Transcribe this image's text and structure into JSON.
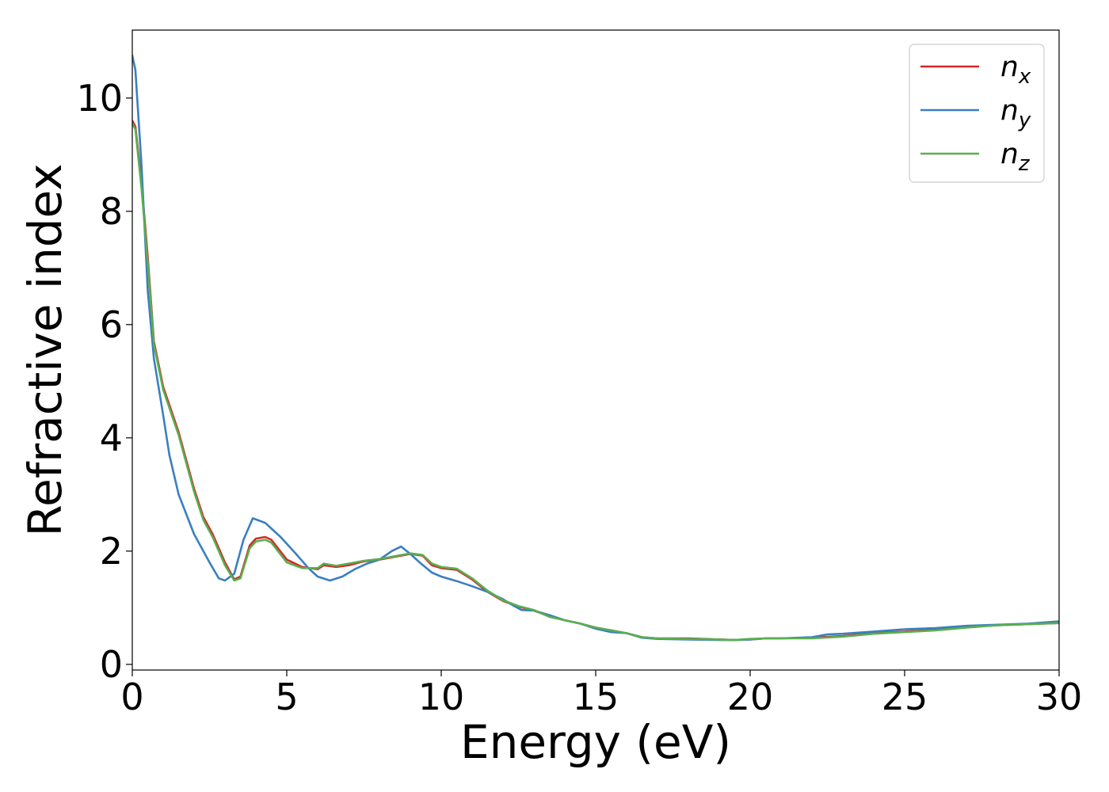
{
  "chart_data": {
    "type": "line",
    "title": "",
    "xlabel": "Energy (eV)",
    "ylabel": "Refractive index",
    "xlim": [
      0,
      30
    ],
    "ylim": [
      -0.1,
      11.2
    ],
    "xticks": [
      0,
      5,
      10,
      15,
      20,
      25,
      30
    ],
    "yticks": [
      0,
      2,
      4,
      6,
      8,
      10
    ],
    "grid": false,
    "legend_position": "top-right",
    "series": [
      {
        "name": "n_x",
        "label_base": "n",
        "label_sub": "x",
        "color": "#d62728",
        "points": [
          [
            0,
            9.6
          ],
          [
            0.1,
            9.5
          ],
          [
            0.3,
            8.5
          ],
          [
            0.5,
            7.2
          ],
          [
            0.7,
            5.7
          ],
          [
            1,
            4.9
          ],
          [
            1.5,
            4.1
          ],
          [
            2,
            3.1
          ],
          [
            2.3,
            2.6
          ],
          [
            2.6,
            2.3
          ],
          [
            3,
            1.8
          ],
          [
            3.3,
            1.5
          ],
          [
            3.5,
            1.55
          ],
          [
            3.8,
            2.1
          ],
          [
            4.0,
            2.22
          ],
          [
            4.3,
            2.25
          ],
          [
            4.5,
            2.2
          ],
          [
            5,
            1.85
          ],
          [
            5.5,
            1.72
          ],
          [
            6,
            1.68
          ],
          [
            6.2,
            1.75
          ],
          [
            6.6,
            1.72
          ],
          [
            7,
            1.75
          ],
          [
            7.5,
            1.82
          ],
          [
            8,
            1.85
          ],
          [
            8.5,
            1.9
          ],
          [
            9,
            1.95
          ],
          [
            9.4,
            1.92
          ],
          [
            9.7,
            1.75
          ],
          [
            10,
            1.7
          ],
          [
            10.5,
            1.67
          ],
          [
            11,
            1.5
          ],
          [
            11.5,
            1.28
          ],
          [
            12,
            1.12
          ],
          [
            12.5,
            1.02
          ],
          [
            13,
            0.95
          ],
          [
            13.5,
            0.85
          ],
          [
            14,
            0.78
          ],
          [
            14.5,
            0.72
          ],
          [
            15,
            0.65
          ],
          [
            15.5,
            0.6
          ],
          [
            16,
            0.55
          ],
          [
            16.5,
            0.48
          ],
          [
            17,
            0.46
          ],
          [
            18,
            0.46
          ],
          [
            19,
            0.44
          ],
          [
            19.5,
            0.43
          ],
          [
            20,
            0.44
          ],
          [
            20.5,
            0.46
          ],
          [
            21,
            0.46
          ],
          [
            22,
            0.47
          ],
          [
            23,
            0.5
          ],
          [
            24,
            0.55
          ],
          [
            25,
            0.58
          ],
          [
            26,
            0.61
          ],
          [
            27,
            0.66
          ],
          [
            28,
            0.69
          ],
          [
            29,
            0.71
          ],
          [
            30,
            0.73
          ]
        ]
      },
      {
        "name": "n_y",
        "label_base": "n",
        "label_sub": "y",
        "color": "#3a7fc1",
        "points": [
          [
            0,
            10.75
          ],
          [
            0.1,
            10.5
          ],
          [
            0.3,
            8.8
          ],
          [
            0.5,
            6.6
          ],
          [
            0.7,
            5.4
          ],
          [
            1,
            4.4
          ],
          [
            1.2,
            3.7
          ],
          [
            1.5,
            3.0
          ],
          [
            2,
            2.3
          ],
          [
            2.5,
            1.8
          ],
          [
            2.8,
            1.52
          ],
          [
            3,
            1.48
          ],
          [
            3.3,
            1.6
          ],
          [
            3.6,
            2.2
          ],
          [
            3.9,
            2.58
          ],
          [
            4.3,
            2.5
          ],
          [
            4.8,
            2.25
          ],
          [
            5.3,
            1.95
          ],
          [
            5.7,
            1.7
          ],
          [
            6,
            1.55
          ],
          [
            6.4,
            1.48
          ],
          [
            6.8,
            1.55
          ],
          [
            7.2,
            1.68
          ],
          [
            7.6,
            1.78
          ],
          [
            8,
            1.85
          ],
          [
            8.4,
            2.0
          ],
          [
            8.7,
            2.08
          ],
          [
            9,
            1.95
          ],
          [
            9.3,
            1.8
          ],
          [
            9.7,
            1.62
          ],
          [
            10,
            1.55
          ],
          [
            10.5,
            1.47
          ],
          [
            11,
            1.38
          ],
          [
            11.5,
            1.28
          ],
          [
            12,
            1.15
          ],
          [
            12.3,
            1.05
          ],
          [
            12.6,
            0.96
          ],
          [
            13,
            0.95
          ],
          [
            13.5,
            0.87
          ],
          [
            14,
            0.78
          ],
          [
            14.5,
            0.72
          ],
          [
            15,
            0.63
          ],
          [
            15.5,
            0.57
          ],
          [
            16,
            0.55
          ],
          [
            16.5,
            0.47
          ],
          [
            17,
            0.45
          ],
          [
            18,
            0.44
          ],
          [
            19,
            0.43
          ],
          [
            19.5,
            0.43
          ],
          [
            20,
            0.44
          ],
          [
            20.5,
            0.46
          ],
          [
            21,
            0.46
          ],
          [
            22,
            0.48
          ],
          [
            22.5,
            0.53
          ],
          [
            23,
            0.54
          ],
          [
            24,
            0.58
          ],
          [
            25,
            0.62
          ],
          [
            26,
            0.64
          ],
          [
            27,
            0.68
          ],
          [
            28,
            0.7
          ],
          [
            29,
            0.72
          ],
          [
            30,
            0.76
          ]
        ]
      },
      {
        "name": "n_z",
        "label_base": "n",
        "label_sub": "z",
        "color": "#5aaf4f",
        "points": [
          [
            0,
            9.55
          ],
          [
            0.1,
            9.45
          ],
          [
            0.3,
            8.4
          ],
          [
            0.5,
            7.1
          ],
          [
            0.7,
            5.65
          ],
          [
            1,
            4.85
          ],
          [
            1.5,
            4.05
          ],
          [
            2,
            3.05
          ],
          [
            2.3,
            2.55
          ],
          [
            2.6,
            2.25
          ],
          [
            3,
            1.75
          ],
          [
            3.3,
            1.48
          ],
          [
            3.5,
            1.52
          ],
          [
            3.8,
            2.05
          ],
          [
            4.0,
            2.17
          ],
          [
            4.3,
            2.2
          ],
          [
            4.5,
            2.15
          ],
          [
            5,
            1.8
          ],
          [
            5.5,
            1.7
          ],
          [
            6,
            1.7
          ],
          [
            6.2,
            1.78
          ],
          [
            6.6,
            1.74
          ],
          [
            7,
            1.78
          ],
          [
            7.5,
            1.83
          ],
          [
            8,
            1.86
          ],
          [
            8.5,
            1.91
          ],
          [
            9,
            1.96
          ],
          [
            9.4,
            1.93
          ],
          [
            9.7,
            1.78
          ],
          [
            10,
            1.72
          ],
          [
            10.5,
            1.69
          ],
          [
            11,
            1.52
          ],
          [
            11.5,
            1.3
          ],
          [
            12,
            1.13
          ],
          [
            12.5,
            1.03
          ],
          [
            13,
            0.96
          ],
          [
            13.5,
            0.84
          ],
          [
            14,
            0.78
          ],
          [
            14.5,
            0.72
          ],
          [
            15,
            0.65
          ],
          [
            15.5,
            0.6
          ],
          [
            16,
            0.55
          ],
          [
            16.5,
            0.48
          ],
          [
            17,
            0.46
          ],
          [
            18,
            0.45
          ],
          [
            19,
            0.44
          ],
          [
            19.5,
            0.43
          ],
          [
            20,
            0.45
          ],
          [
            20.5,
            0.46
          ],
          [
            21,
            0.46
          ],
          [
            22,
            0.46
          ],
          [
            23,
            0.49
          ],
          [
            24,
            0.54
          ],
          [
            25,
            0.57
          ],
          [
            26,
            0.6
          ],
          [
            27,
            0.65
          ],
          [
            28,
            0.69
          ],
          [
            29,
            0.71
          ],
          [
            30,
            0.73
          ]
        ]
      }
    ]
  }
}
